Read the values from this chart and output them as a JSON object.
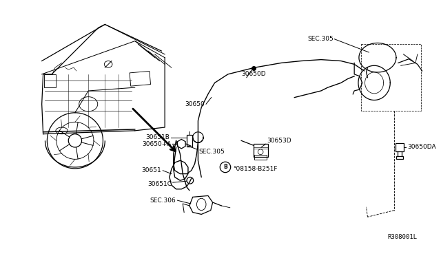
{
  "background_color": "#ffffff",
  "diagram_ref": "R308001L",
  "fig_width": 6.4,
  "fig_height": 3.72,
  "dpi": 100,
  "labels": {
    "SEC305_top": "SEC.305",
    "30650D": "30650D",
    "30650": "30650",
    "30651B": "30651B",
    "SEC305_mid": "SEC.305",
    "30650A": "30650+A",
    "30653D": "30653D",
    "30651": "30651",
    "30651C": "30651C",
    "SEC306": "SEC.306",
    "bolt": "°08158-B251F",
    "30650DA": "30650DA"
  }
}
